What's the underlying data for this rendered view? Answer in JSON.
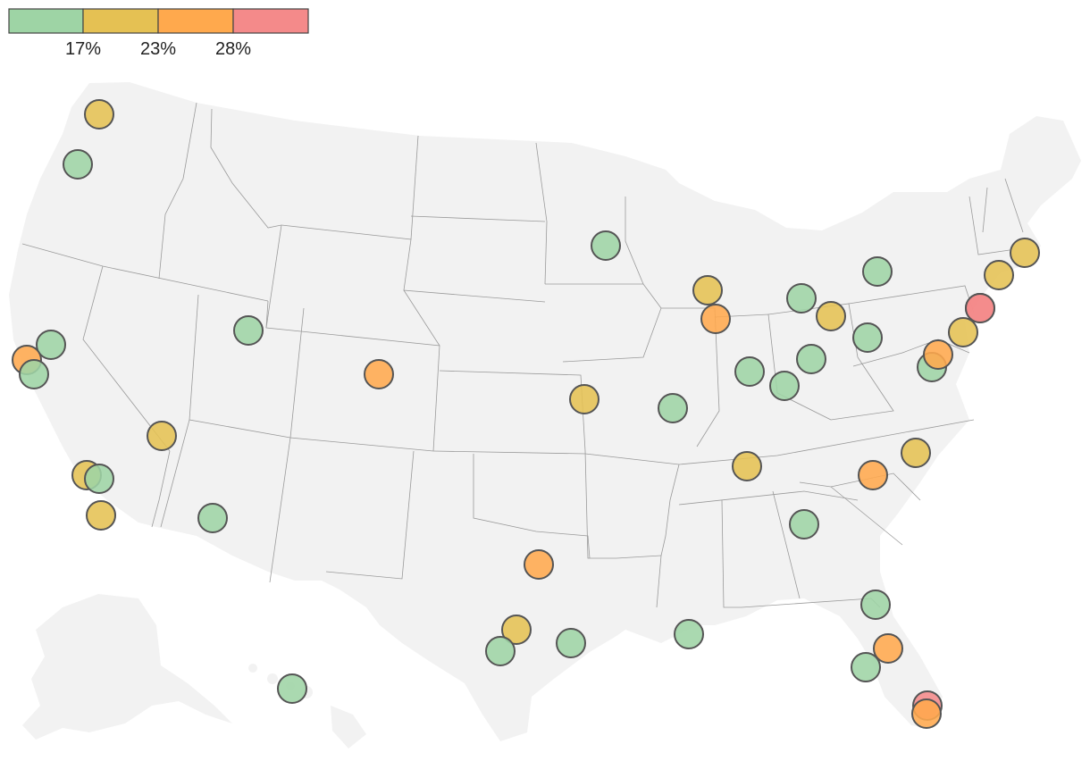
{
  "legend": {
    "colors": [
      "#9ed4a5",
      "#e5c153",
      "#ffa94d",
      "#f48a8a"
    ],
    "breaks": [
      "17%",
      "23%",
      "28%"
    ]
  },
  "cities": [
    {
      "name": "seattle",
      "bucket": 1
    },
    {
      "name": "portland",
      "bucket": 0
    },
    {
      "name": "sacramento",
      "bucket": 0
    },
    {
      "name": "san-francisco",
      "bucket": 2
    },
    {
      "name": "san-jose",
      "bucket": 0
    },
    {
      "name": "los-angeles",
      "bucket": 1
    },
    {
      "name": "riverside",
      "bucket": 0
    },
    {
      "name": "san-diego",
      "bucket": 1
    },
    {
      "name": "las-vegas",
      "bucket": 1
    },
    {
      "name": "phoenix",
      "bucket": 0
    },
    {
      "name": "salt-lake-city",
      "bucket": 0
    },
    {
      "name": "denver",
      "bucket": 2
    },
    {
      "name": "minneapolis",
      "bucket": 0
    },
    {
      "name": "kansas-city",
      "bucket": 1
    },
    {
      "name": "st-louis",
      "bucket": 0
    },
    {
      "name": "milwaukee",
      "bucket": 1
    },
    {
      "name": "chicago",
      "bucket": 2
    },
    {
      "name": "detroit",
      "bucket": 0
    },
    {
      "name": "cleveland",
      "bucket": 1
    },
    {
      "name": "indianapolis",
      "bucket": 0
    },
    {
      "name": "cincinnati",
      "bucket": 0
    },
    {
      "name": "columbus",
      "bucket": 0
    },
    {
      "name": "pittsburgh",
      "bucket": 0
    },
    {
      "name": "nashville",
      "bucket": 1
    },
    {
      "name": "atlanta",
      "bucket": 0
    },
    {
      "name": "charlotte",
      "bucket": 2
    },
    {
      "name": "raleigh",
      "bucket": 1
    },
    {
      "name": "richmond",
      "bucket": 0
    },
    {
      "name": "washington",
      "bucket": 2
    },
    {
      "name": "baltimore",
      "bucket": 1
    },
    {
      "name": "philadelphia",
      "bucket": 3
    },
    {
      "name": "new-york",
      "bucket": 3
    },
    {
      "name": "hartford",
      "bucket": 1
    },
    {
      "name": "boston",
      "bucket": 1
    },
    {
      "name": "buffalo",
      "bucket": 0
    },
    {
      "name": "dallas",
      "bucket": 2
    },
    {
      "name": "austin",
      "bucket": 1
    },
    {
      "name": "san-antonio",
      "bucket": 0
    },
    {
      "name": "houston",
      "bucket": 0
    },
    {
      "name": "new-orleans",
      "bucket": 0
    },
    {
      "name": "jacksonville",
      "bucket": 0
    },
    {
      "name": "orlando",
      "bucket": 2
    },
    {
      "name": "tampa",
      "bucket": 0
    },
    {
      "name": "miami-north",
      "bucket": 3
    },
    {
      "name": "miami",
      "bucket": 2
    },
    {
      "name": "honolulu",
      "bucket": 0
    }
  ]
}
